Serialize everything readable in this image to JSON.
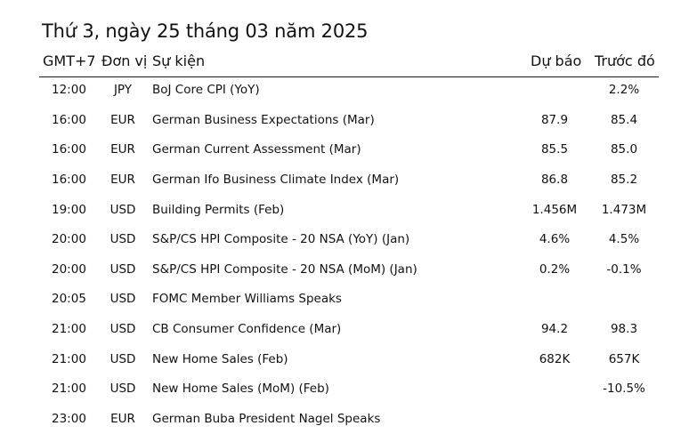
{
  "title": "Thứ 3, ngày 25 tháng 03 năm 2025",
  "columns": {
    "time": "GMT+7",
    "currency": "Đơn vị",
    "event": "Sự kiện",
    "forecast": "Dự báo",
    "previous": "Trước đó"
  },
  "rows": [
    {
      "time": "12:00",
      "currency": "JPY",
      "event": "BoJ Core CPI (YoY)",
      "forecast": "",
      "previous": "2.2%"
    },
    {
      "time": "16:00",
      "currency": "EUR",
      "event": "German Business Expectations (Mar)",
      "forecast": "87.9",
      "previous": "85.4"
    },
    {
      "time": "16:00",
      "currency": "EUR",
      "event": "German Current Assessment (Mar)",
      "forecast": "85.5",
      "previous": "85.0"
    },
    {
      "time": "16:00",
      "currency": "EUR",
      "event": "German Ifo Business Climate Index (Mar)",
      "forecast": "86.8",
      "previous": "85.2"
    },
    {
      "time": "19:00",
      "currency": "USD",
      "event": "Building Permits (Feb)",
      "forecast": "1.456M",
      "previous": "1.473M"
    },
    {
      "time": "20:00",
      "currency": "USD",
      "event": "S&P/CS HPI Composite - 20 NSA (YoY) (Jan)",
      "forecast": "4.6%",
      "previous": "4.5%"
    },
    {
      "time": "20:00",
      "currency": "USD",
      "event": "S&P/CS HPI Composite - 20 NSA (MoM) (Jan)",
      "forecast": "0.2%",
      "previous": "-0.1%"
    },
    {
      "time": "20:05",
      "currency": "USD",
      "event": "FOMC Member Williams Speaks",
      "forecast": "",
      "previous": ""
    },
    {
      "time": "21:00",
      "currency": "USD",
      "event": "CB Consumer Confidence (Mar)",
      "forecast": "94.2",
      "previous": "98.3"
    },
    {
      "time": "21:00",
      "currency": "USD",
      "event": "New Home Sales (Feb)",
      "forecast": "682K",
      "previous": "657K"
    },
    {
      "time": "21:00",
      "currency": "USD",
      "event": "New Home Sales (MoM) (Feb)",
      "forecast": "",
      "previous": "-10.5%"
    },
    {
      "time": "23:00",
      "currency": "EUR",
      "event": "German Buba President Nagel Speaks",
      "forecast": "",
      "previous": ""
    }
  ]
}
